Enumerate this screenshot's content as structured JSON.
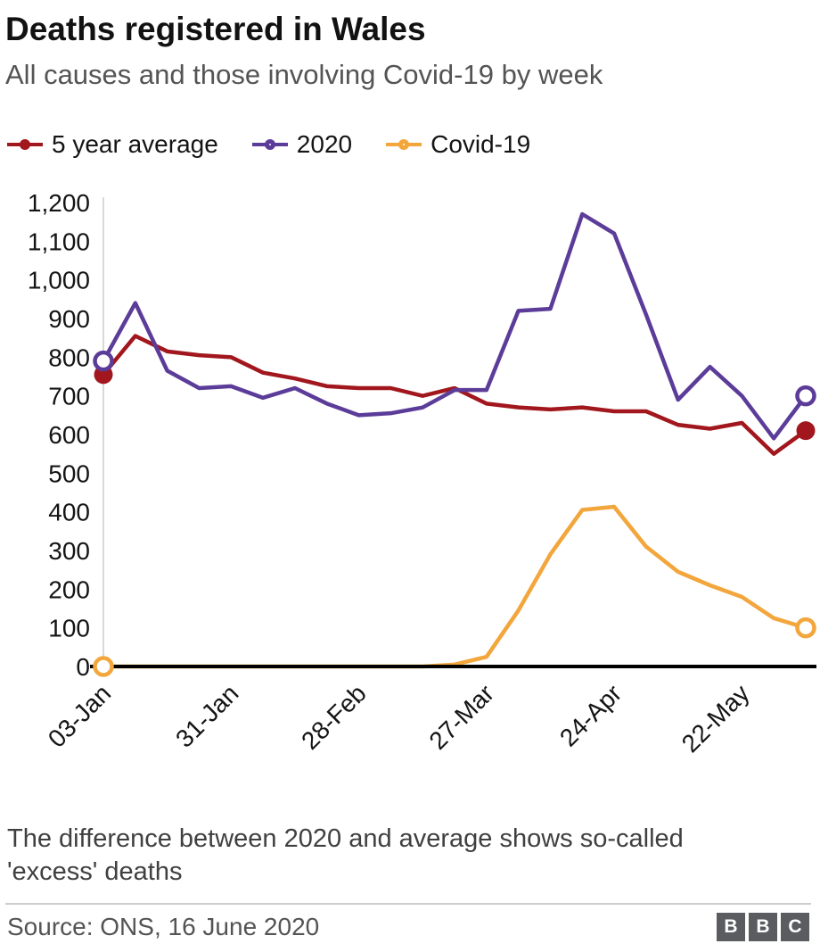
{
  "header": {
    "title": "Deaths registered in Wales",
    "subtitle": "All causes and those involving Covid-19 by week"
  },
  "legend": [
    {
      "label": "5 year average",
      "color": "#a1171d",
      "marker": "filled"
    },
    {
      "label": "2020",
      "color": "#5c3c99",
      "marker": "open"
    },
    {
      "label": "Covid-19",
      "color": "#f2a63c",
      "marker": "open"
    }
  ],
  "chart_data": {
    "type": "line",
    "title": "Deaths registered in Wales",
    "subtitle": "All causes and those involving Covid-19 by week",
    "x": [
      "03-Jan",
      "10-Jan",
      "17-Jan",
      "24-Jan",
      "31-Jan",
      "07-Feb",
      "14-Feb",
      "21-Feb",
      "28-Feb",
      "06-Mar",
      "13-Mar",
      "20-Mar",
      "27-Mar",
      "03-Apr",
      "10-Apr",
      "17-Apr",
      "24-Apr",
      "01-May",
      "08-May",
      "15-May",
      "22-May",
      "29-May",
      "05-Jun"
    ],
    "series": [
      {
        "name": "5 year average",
        "color": "#a1171d",
        "marker": "filled",
        "values": [
          755,
          855,
          815,
          805,
          800,
          760,
          745,
          725,
          720,
          720,
          700,
          720,
          680,
          670,
          665,
          670,
          660,
          660,
          625,
          615,
          630,
          550,
          610
        ]
      },
      {
        "name": "2020",
        "color": "#5c3c99",
        "marker": "open",
        "values": [
          790,
          940,
          765,
          720,
          725,
          695,
          720,
          680,
          650,
          655,
          670,
          715,
          715,
          920,
          925,
          1170,
          1120,
          910,
          690,
          775,
          700,
          590,
          700
        ]
      },
      {
        "name": "Covid-19",
        "color": "#f2a63c",
        "marker": "open",
        "values": [
          0,
          0,
          0,
          0,
          0,
          0,
          0,
          0,
          0,
          0,
          0,
          5,
          25,
          145,
          290,
          405,
          413,
          310,
          245,
          210,
          180,
          125,
          100
        ]
      }
    ],
    "ylim": [
      0,
      1200
    ],
    "ytick_values": [
      0,
      100,
      200,
      300,
      400,
      500,
      600,
      700,
      800,
      900,
      1000,
      1100,
      1200
    ],
    "ytick_labels": [
      "0",
      "100",
      "200",
      "300",
      "400",
      "500",
      "600",
      "700",
      "800",
      "900",
      "1,000",
      "1,100",
      "1,200"
    ],
    "xticks": [
      {
        "index": 0,
        "label": "03-Jan"
      },
      {
        "index": 4,
        "label": "31-Jan"
      },
      {
        "index": 8,
        "label": "28-Feb"
      },
      {
        "index": 12,
        "label": "27-Mar"
      },
      {
        "index": 16,
        "label": "24-Apr"
      },
      {
        "index": 20,
        "label": "22-May"
      }
    ],
    "grid": false,
    "legend_position": "top"
  },
  "footnote": "The difference between 2020 and average shows so-called 'excess' deaths",
  "footer": {
    "source": "Source: ONS, 16 June 2020",
    "logo_letters": [
      "B",
      "B",
      "C"
    ],
    "logo_color": "#5a5c60"
  }
}
